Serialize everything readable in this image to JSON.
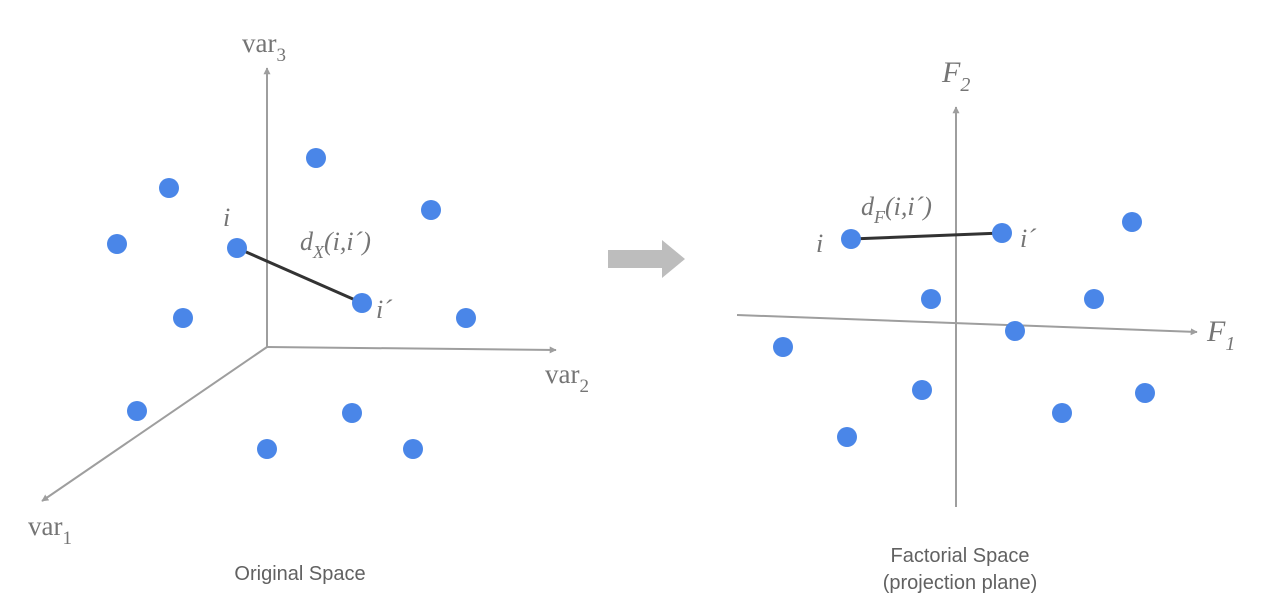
{
  "colors": {
    "point": "#4a86e8",
    "axis": "#9e9e9e",
    "link": "#333333",
    "arrow": "#bdbdbd",
    "text": "#757575",
    "caption": "#616161"
  },
  "original": {
    "axes": {
      "var1": {
        "base": "var",
        "sub": "1"
      },
      "var2": {
        "base": "var",
        "sub": "2"
      },
      "var3": {
        "base": "var",
        "sub": "3"
      }
    },
    "point_i_label": "i",
    "point_i2_label": "i´",
    "distance": {
      "d": "d",
      "sub": "X",
      "args": "(i,i´)"
    },
    "caption": "Original Space"
  },
  "transform_arrow": "right-arrow-icon",
  "factorial": {
    "axes": {
      "f1": {
        "base": "F",
        "sub": "1"
      },
      "f2": {
        "base": "F",
        "sub": "2"
      }
    },
    "point_i_label": "i",
    "point_i2_label": "i´",
    "distance": {
      "d": "d",
      "sub": "F",
      "args": "(i,i´)"
    },
    "caption_line1": "Factorial Space",
    "caption_line2": "(projection plane)"
  }
}
